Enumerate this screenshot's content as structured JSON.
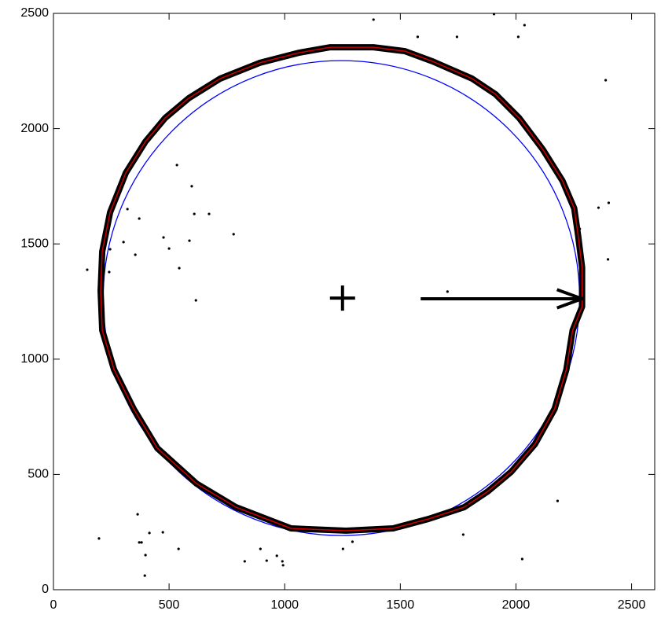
{
  "chart_data": {
    "type": "scatter",
    "xlim": [
      0,
      2600
    ],
    "ylim": [
      0,
      2500
    ],
    "xticks": [
      0,
      500,
      1000,
      1500,
      2000,
      2500
    ],
    "yticks": [
      0,
      500,
      1000,
      1500,
      2000,
      2500
    ],
    "series": [
      {
        "type": "scatter",
        "color": "#000000",
        "x": [
          146,
          197,
          245,
          241,
          303,
          320,
          354,
          371,
          476,
          500,
          534,
          544,
          598,
          609,
          673,
          588,
          616,
          779,
          364,
          371,
          381,
          398,
          395,
          415,
          473,
          541,
          827,
          895,
          922,
          966,
          990,
          993,
          1252,
          1293,
          1384,
          1575,
          1745,
          1905,
          2010,
          2037,
          2388,
          2357,
          2401,
          2398,
          1704,
          2276,
          2180,
          1789,
          1772,
          2027
        ],
        "y": [
          1388,
          222,
          1477,
          1378,
          1508,
          1651,
          1453,
          1610,
          1528,
          1480,
          1842,
          1395,
          1750,
          1630,
          1630,
          1514,
          1255,
          1542,
          327,
          205,
          205,
          150,
          61,
          246,
          249,
          177,
          123,
          177,
          126,
          147,
          123,
          106,
          177,
          208,
          2473,
          2398,
          2398,
          2497,
          2398,
          2449,
          2210,
          1657,
          1678,
          1433,
          1293,
          1565,
          385,
          372,
          239,
          133
        ]
      },
      {
        "type": "line",
        "color": "#000000",
        "inner_color": "#cc0000",
        "closed": true,
        "x": [
          1197,
          1384,
          1520,
          1639,
          1810,
          1912,
          2014,
          2116,
          2201,
          2252,
          2269,
          2286,
          2286,
          2245,
          2218,
          2167,
          2082,
          1980,
          1878,
          1776,
          1622,
          1469,
          1265,
          1027,
          789,
          619,
          449,
          347,
          262,
          211,
          204,
          211,
          245,
          313,
          398,
          483,
          585,
          721,
          891,
          1061
        ],
        "y": [
          2353,
          2353,
          2336,
          2292,
          2217,
          2149,
          2046,
          1910,
          1774,
          1654,
          1535,
          1398,
          1228,
          1125,
          955,
          784,
          631,
          512,
          426,
          358,
          307,
          266,
          256,
          266,
          358,
          460,
          614,
          784,
          955,
          1125,
          1296,
          1467,
          1637,
          1808,
          1944,
          2046,
          2132,
          2217,
          2285,
          2329
        ]
      },
      {
        "type": "circle",
        "color": "#0000ff",
        "cx": 1245,
        "cy": 1265,
        "r": 1030
      },
      {
        "type": "marker",
        "color": "#000000",
        "x": [
          1250
        ],
        "y": [
          1265
        ]
      },
      {
        "type": "arrow",
        "color": "#000000",
        "x": [
          1588,
          2286
        ],
        "y": [
          1262,
          1262
        ]
      }
    ]
  }
}
